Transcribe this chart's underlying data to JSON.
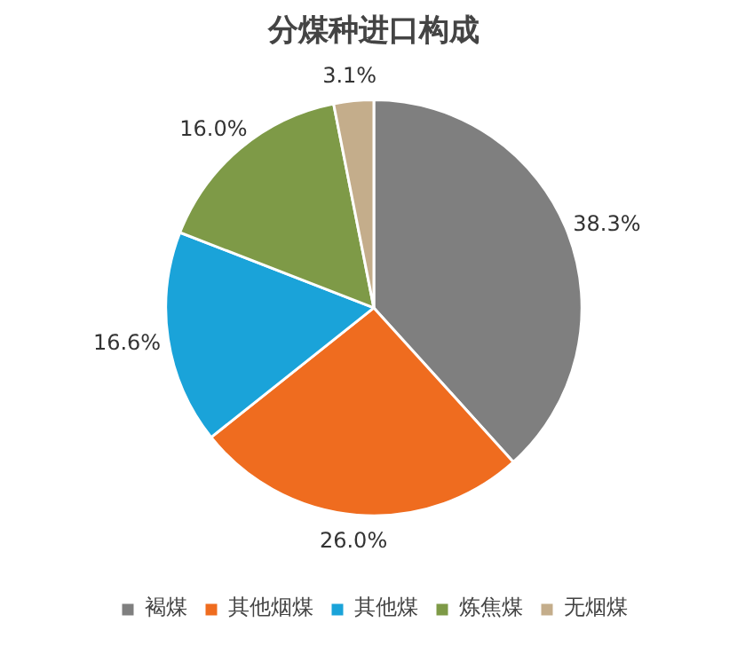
{
  "chart_data": {
    "type": "pie",
    "title": "分煤种进口构成",
    "categories": [
      "褐煤",
      "其他烟煤",
      "其他煤",
      "炼焦煤",
      "无烟煤"
    ],
    "values": [
      38.3,
      26.0,
      16.6,
      16.0,
      3.1
    ],
    "colors": [
      "#7f7f7f",
      "#ef6c1f",
      "#1aa3d9",
      "#7e9a47",
      "#c4ad8b"
    ],
    "value_labels": [
      "38.3%",
      "26.0%",
      "16.6%",
      "16.0%",
      "3.1%"
    ],
    "legend": "bottom"
  }
}
